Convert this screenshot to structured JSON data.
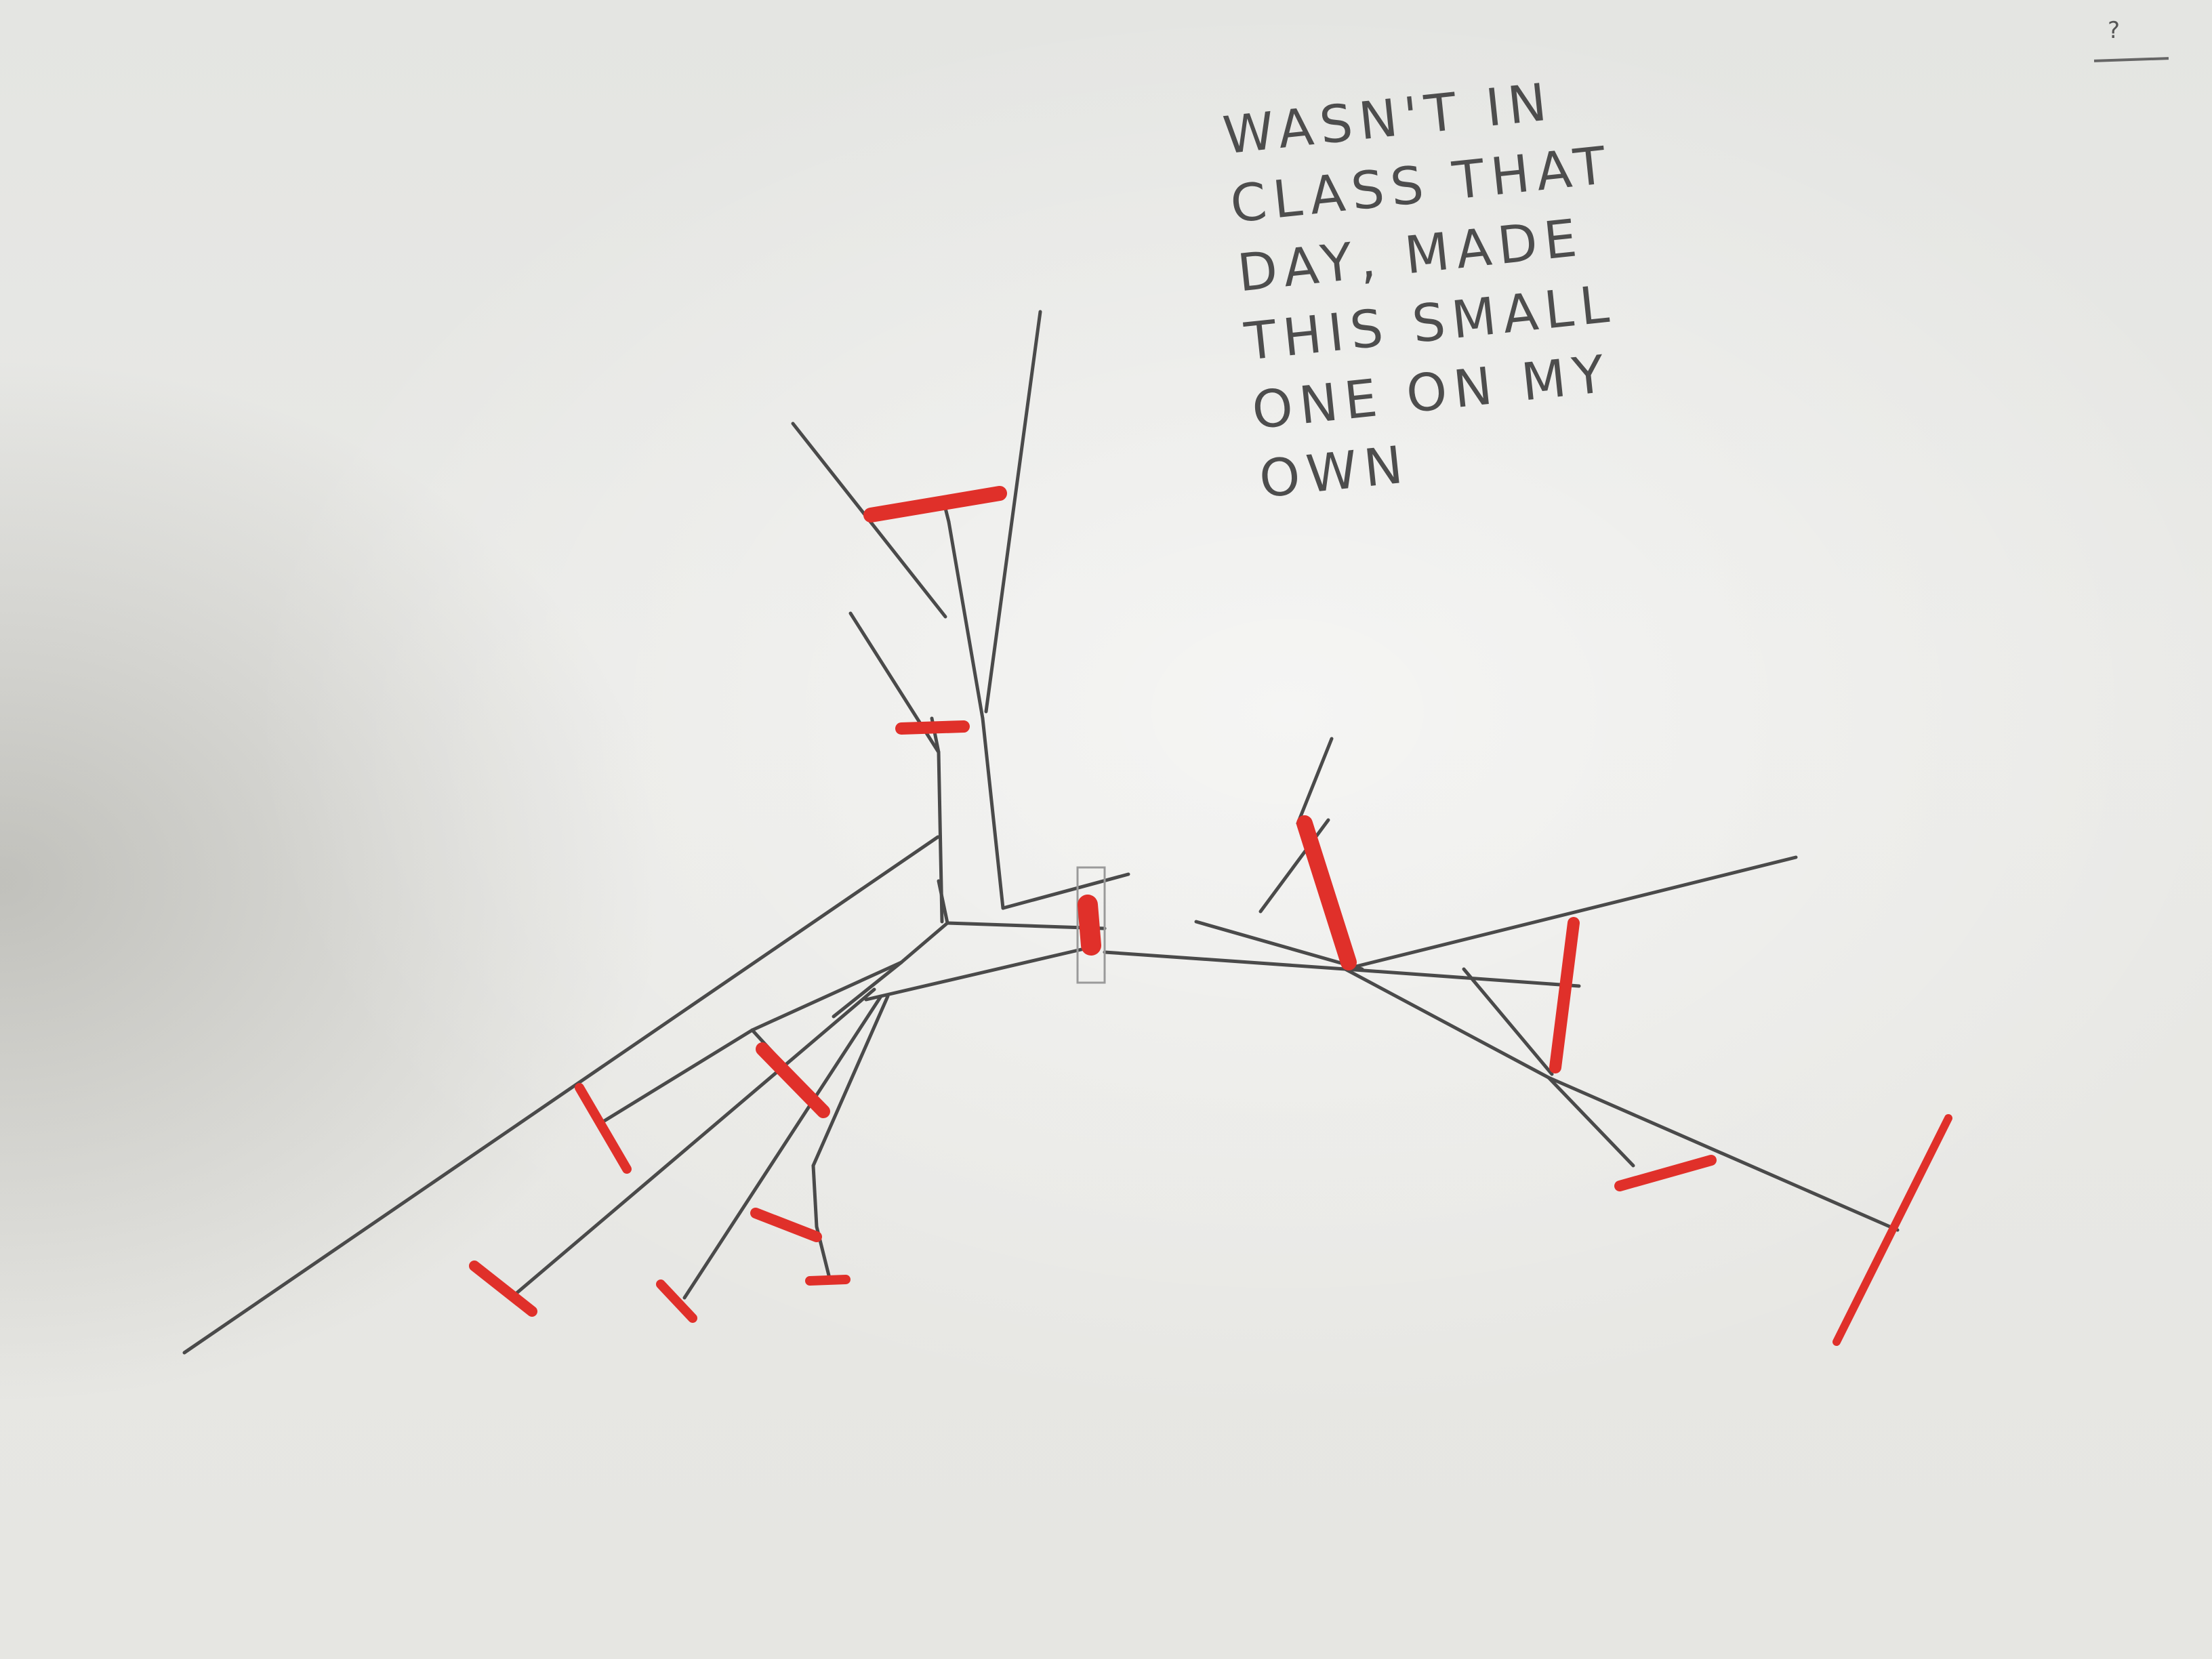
{
  "note": {
    "lines": [
      "WASN'T IN",
      "CLASS THAT",
      "DAY, MADE",
      "THIS SMALL",
      "ONE ON MY",
      "OWN"
    ]
  },
  "corner_mark": "?",
  "colors": {
    "paper": "#e7e7e4",
    "pencil": "#4a4a4a",
    "marker": "#e0302a"
  }
}
